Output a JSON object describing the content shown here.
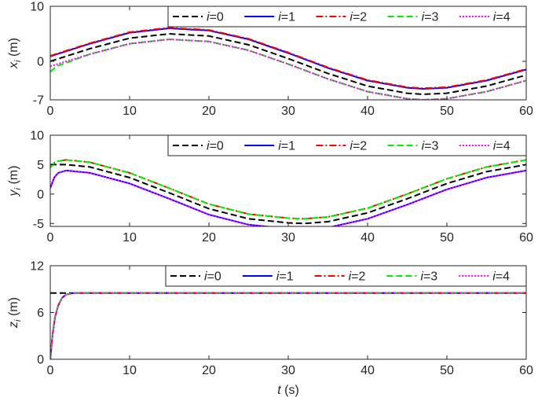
{
  "chart_data": [
    {
      "type": "line",
      "ylabel": {
        "var": "x",
        "sub": "i",
        "unit": " (m)"
      },
      "xlim": [
        0,
        60
      ],
      "ylim": [
        -7,
        10
      ],
      "xticks": [
        "0",
        "10",
        "20",
        "30",
        "40",
        "50",
        "60"
      ],
      "yticks": [
        {
          "value": -7,
          "label": "-7"
        },
        {
          "value": 0,
          "label": "0"
        },
        {
          "value": 10,
          "label": "10"
        }
      ],
      "legend": {
        "placement": "top-right",
        "orientation": "horizontal"
      },
      "series": [
        {
          "name": "i=0",
          "color": "#000000",
          "dash": "dashed",
          "x": [
            0,
            5,
            10,
            15,
            20,
            25,
            30,
            35,
            40,
            45,
            47,
            50,
            55,
            60
          ],
          "y": [
            0,
            2.3,
            4.2,
            5.0,
            4.6,
            3.0,
            0.5,
            -2.2,
            -4.5,
            -5.8,
            -6.0,
            -5.8,
            -4.5,
            -2.5
          ]
        },
        {
          "name": "i=1",
          "color": "#0000ff",
          "dash": "solid",
          "x": [
            0,
            5,
            10,
            15,
            20,
            25,
            30,
            35,
            40,
            45,
            47,
            50,
            55,
            60
          ],
          "y": [
            0.9,
            3.2,
            5.2,
            6.0,
            5.6,
            4.0,
            1.5,
            -1.2,
            -3.5,
            -4.8,
            -5.0,
            -4.8,
            -3.5,
            -1.5
          ]
        },
        {
          "name": "i=2",
          "color": "#ff0000",
          "dash": "dashdot",
          "x": [
            0,
            5,
            10,
            15,
            20,
            25,
            30,
            35,
            40,
            45,
            47,
            50,
            55,
            60
          ],
          "y": [
            1.0,
            3.3,
            5.3,
            6.1,
            5.7,
            4.1,
            1.6,
            -1.1,
            -3.4,
            -4.7,
            -4.9,
            -4.7,
            -3.4,
            -1.4
          ]
        },
        {
          "name": "i=3",
          "color": "#00ee00",
          "dash": "dashed",
          "x": [
            0,
            0.8,
            5,
            10,
            15,
            20,
            25,
            30,
            35,
            40,
            45,
            47,
            50,
            55,
            60
          ],
          "y": [
            -1.9,
            -0.9,
            1.3,
            3.2,
            4.0,
            3.6,
            2.0,
            -0.5,
            -3.2,
            -5.5,
            -6.8,
            -7.0,
            -6.8,
            -5.5,
            -3.5
          ]
        },
        {
          "name": "i=4",
          "color": "#ff00ff",
          "dash": "dotted",
          "x": [
            0,
            5,
            10,
            15,
            20,
            25,
            30,
            35,
            40,
            45,
            47,
            50,
            55,
            60
          ],
          "y": [
            -0.9,
            1.3,
            3.2,
            4.0,
            3.6,
            2.0,
            -0.5,
            -3.2,
            -5.5,
            -6.8,
            -7.0,
            -6.8,
            -5.5,
            -3.5
          ]
        }
      ]
    },
    {
      "type": "line",
      "ylabel": {
        "var": "y",
        "sub": "i",
        "unit": " (m)"
      },
      "xlim": [
        0,
        60
      ],
      "ylim": [
        -5.5,
        10
      ],
      "xticks": [
        "0",
        "10",
        "20",
        "30",
        "40",
        "50",
        "60"
      ],
      "yticks": [
        {
          "value": -5,
          "label": "-5"
        },
        {
          "value": 0,
          "label": "0"
        },
        {
          "value": 5,
          "label": "5"
        },
        {
          "value": 10,
          "label": "10"
        }
      ],
      "legend": {
        "placement": "top-right",
        "orientation": "horizontal"
      },
      "series": [
        {
          "name": "i=0",
          "color": "#000000",
          "dash": "dashed",
          "x": [
            0,
            2,
            5,
            10,
            15,
            20,
            25,
            30,
            32,
            35,
            40,
            45,
            50,
            55,
            60
          ],
          "y": [
            5,
            5,
            4.6,
            2.8,
            0.2,
            -2.5,
            -4.2,
            -4.9,
            -5.0,
            -4.7,
            -3.2,
            -0.8,
            1.8,
            3.8,
            5.0
          ]
        },
        {
          "name": "i=1",
          "color": "#0000ff",
          "dash": "solid",
          "x": [
            0,
            0.5,
            1,
            2,
            5,
            10,
            15,
            20,
            25,
            30,
            32,
            35,
            40,
            45,
            50,
            55,
            60
          ],
          "y": [
            1.0,
            2.8,
            3.6,
            4.0,
            3.6,
            1.8,
            -0.8,
            -3.5,
            -5.2,
            -5.9,
            -6.0,
            -5.7,
            -4.2,
            -1.8,
            0.8,
            2.8,
            4.0
          ]
        },
        {
          "name": "i=2",
          "color": "#ff0000",
          "dash": "dashdot",
          "x": [
            0,
            0.5,
            1,
            2,
            5,
            10,
            15,
            20,
            25,
            30,
            32,
            35,
            40,
            45,
            50,
            55,
            60
          ],
          "y": [
            4.5,
            5.3,
            5.6,
            5.8,
            5.4,
            3.6,
            1.0,
            -1.7,
            -3.4,
            -4.1,
            -4.2,
            -3.9,
            -2.4,
            0,
            2.6,
            4.6,
            5.8
          ]
        },
        {
          "name": "i=3",
          "color": "#00ee00",
          "dash": "dashed",
          "x": [
            0,
            0.5,
            1,
            2,
            5,
            10,
            15,
            20,
            25,
            30,
            32,
            35,
            40,
            45,
            50,
            55,
            60
          ],
          "y": [
            4.5,
            5.3,
            5.6,
            5.8,
            5.4,
            3.6,
            1.0,
            -1.7,
            -3.4,
            -4.1,
            -4.2,
            -3.9,
            -2.4,
            0,
            2.6,
            4.6,
            5.8
          ]
        },
        {
          "name": "i=4",
          "color": "#ff00ff",
          "dash": "dotted",
          "x": [
            0,
            0.5,
            1,
            2,
            5,
            10,
            15,
            20,
            25,
            30,
            32,
            35,
            40,
            45,
            50,
            55,
            60
          ],
          "y": [
            1.0,
            2.8,
            3.6,
            4.0,
            3.6,
            1.8,
            -0.8,
            -3.5,
            -5.2,
            -5.9,
            -6.0,
            -5.7,
            -4.2,
            -1.8,
            0.8,
            2.8,
            4.0
          ]
        }
      ]
    },
    {
      "type": "line",
      "ylabel": {
        "var": "z",
        "sub": "i",
        "unit": " (m)"
      },
      "xlabel": {
        "var": "t",
        "unit": " (s)"
      },
      "xlim": [
        0,
        60
      ],
      "ylim": [
        0,
        12
      ],
      "xticks": [
        "0",
        "10",
        "20",
        "30",
        "40",
        "50",
        "60"
      ],
      "yticks": [
        {
          "value": 0,
          "label": "0"
        },
        {
          "value": 6,
          "label": "6"
        },
        {
          "value": 12,
          "label": "12"
        }
      ],
      "legend": {
        "placement": "top-right",
        "orientation": "horizontal"
      },
      "series": [
        {
          "name": "i=0",
          "color": "#000000",
          "dash": "dashed",
          "x": [
            0,
            60
          ],
          "y": [
            8.5,
            8.5
          ]
        },
        {
          "name": "i=1",
          "color": "#0000ff",
          "dash": "solid",
          "x": [
            0,
            0.3,
            0.6,
            1,
            1.5,
            2,
            3,
            60
          ],
          "y": [
            0,
            3.2,
            5.4,
            6.9,
            7.9,
            8.3,
            8.5,
            8.5
          ]
        },
        {
          "name": "i=2",
          "color": "#ff0000",
          "dash": "dashdot",
          "x": [
            0,
            0.3,
            0.6,
            1,
            1.5,
            2,
            3,
            60
          ],
          "y": [
            0,
            3.2,
            5.4,
            6.9,
            7.9,
            8.3,
            8.5,
            8.5
          ]
        },
        {
          "name": "i=3",
          "color": "#00ee00",
          "dash": "dashed",
          "x": [
            0,
            0.3,
            0.6,
            1,
            1.5,
            2,
            3,
            60
          ],
          "y": [
            0,
            3.2,
            5.4,
            6.9,
            7.9,
            8.3,
            8.5,
            8.5
          ]
        },
        {
          "name": "i=4",
          "color": "#ff00ff",
          "dash": "dotted",
          "x": [
            0,
            0.3,
            0.6,
            1,
            1.5,
            2,
            3,
            60
          ],
          "y": [
            0,
            3.2,
            5.4,
            6.9,
            7.9,
            8.3,
            8.5,
            8.5
          ]
        }
      ]
    }
  ]
}
